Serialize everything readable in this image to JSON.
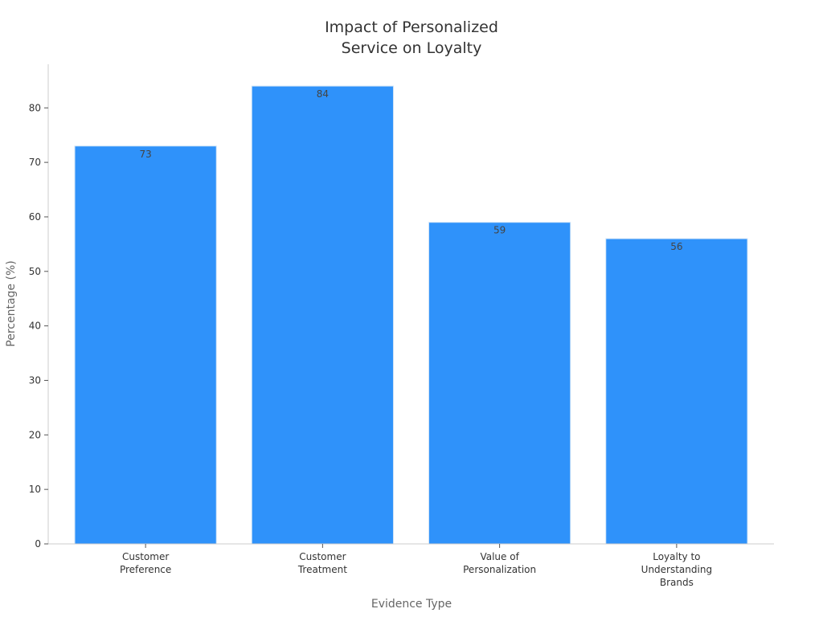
{
  "chart_data": {
    "type": "bar",
    "title": "Impact of Personalized Service on Loyalty",
    "title_lines": [
      "Impact of Personalized",
      "Service on Loyalty"
    ],
    "xlabel": "Evidence Type",
    "ylabel": "Percentage (%)",
    "categories": [
      "Customer Preference",
      "Customer Treatment",
      "Value of Personalization",
      "Loyalty to Understanding Brands"
    ],
    "category_lines": [
      [
        "Customer",
        "Preference"
      ],
      [
        "Customer",
        "Treatment"
      ],
      [
        "Value of",
        "Personalization"
      ],
      [
        "Loyalty to",
        "Understanding",
        "Brands"
      ]
    ],
    "values": [
      73,
      84,
      59,
      56
    ],
    "ylim": [
      0,
      88
    ],
    "yticks": [
      0,
      10,
      20,
      30,
      40,
      50,
      60,
      70,
      80
    ],
    "bar_color": "#2f92fa",
    "grid": false,
    "data_labels": true
  }
}
